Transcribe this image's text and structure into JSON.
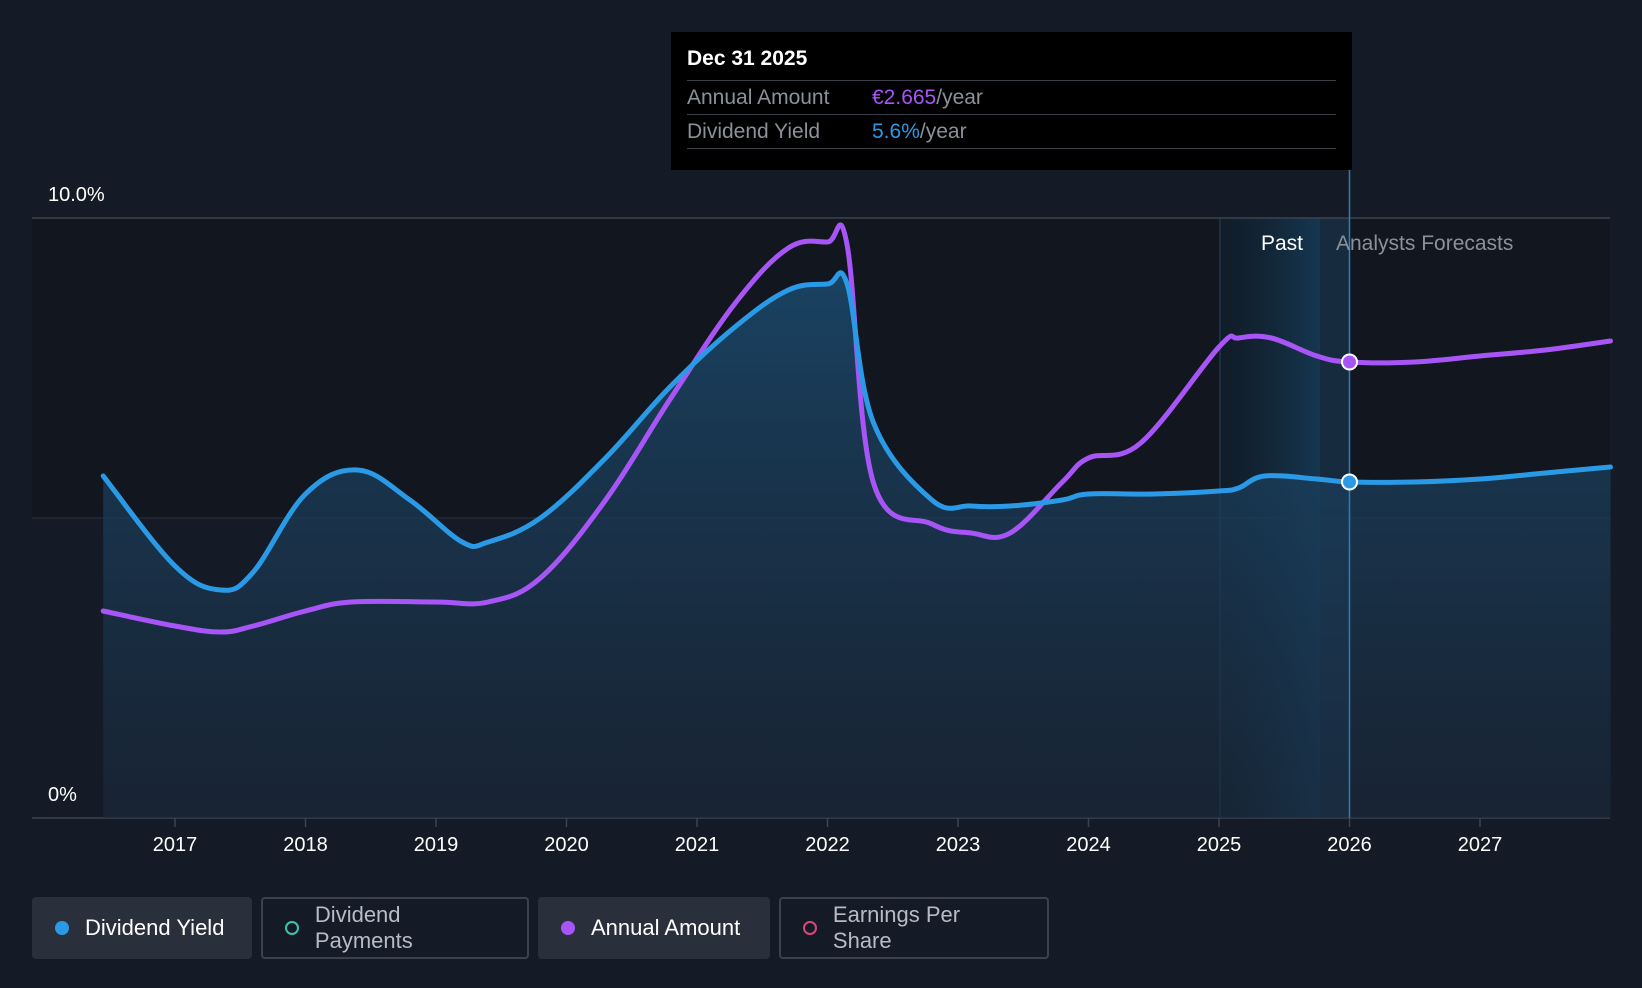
{
  "chart_data": {
    "type": "area",
    "title": "",
    "x_ticks": [
      "2017",
      "2018",
      "2019",
      "2020",
      "2021",
      "2022",
      "2023",
      "2024",
      "2025",
      "2026",
      "2027"
    ],
    "y_ticks": [
      "10.0%",
      "0%"
    ],
    "ylim": [
      0,
      10
    ],
    "regions": {
      "past": "Past",
      "forecast": "Analysts Forecasts"
    },
    "series": [
      {
        "name": "Dividend Yield",
        "color": "#2b9ae6",
        "x": [
          2016.45,
          2017.0,
          2017.35,
          2017.6,
          2018.0,
          2018.4,
          2018.8,
          2019.2,
          2019.4,
          2019.8,
          2020.3,
          2020.8,
          2021.3,
          2021.7,
          2022.0,
          2022.15,
          2022.35,
          2022.8,
          2023.1,
          2023.4,
          2023.8,
          2024.0,
          2024.5,
          2025.0,
          2025.15,
          2025.35,
          2025.75,
          2026.0,
          2026.5,
          2027.0,
          2027.5,
          2028.0
        ],
        "values": [
          5.7,
          4.2,
          3.8,
          4.1,
          5.4,
          5.8,
          5.3,
          4.6,
          4.6,
          5.0,
          6.0,
          7.2,
          8.2,
          8.8,
          8.9,
          8.9,
          6.6,
          5.3,
          5.2,
          5.2,
          5.3,
          5.4,
          5.4,
          5.45,
          5.5,
          5.7,
          5.65,
          5.6,
          5.6,
          5.65,
          5.75,
          5.85
        ]
      },
      {
        "name": "Annual Amount",
        "color": "#a855f7",
        "x": [
          2016.45,
          2017.0,
          2017.35,
          2017.6,
          2018.0,
          2018.35,
          2019.0,
          2019.4,
          2019.8,
          2020.3,
          2020.8,
          2021.3,
          2021.7,
          2022.0,
          2022.15,
          2022.35,
          2022.8,
          2023.1,
          2023.4,
          2023.8,
          2024.0,
          2024.4,
          2025.0,
          2025.15,
          2025.4,
          2025.75,
          2026.0,
          2026.5,
          2027.0,
          2027.5,
          2028.0
        ],
        "values": [
          3.45,
          3.2,
          3.1,
          3.2,
          3.45,
          3.6,
          3.6,
          3.6,
          4.0,
          5.3,
          7.0,
          8.6,
          9.5,
          9.6,
          9.55,
          5.6,
          4.9,
          4.75,
          4.75,
          5.6,
          6.0,
          6.25,
          7.85,
          8.0,
          8.0,
          7.7,
          7.6,
          7.6,
          7.7,
          7.8,
          7.95
        ]
      }
    ],
    "highlight_x": 2026.0,
    "tooltip": {
      "date": "Dec 31 2025",
      "rows": [
        {
          "label": "Annual Amount",
          "value": "€2.665",
          "unit": "/year"
        },
        {
          "label": "Dividend Yield",
          "value": "5.6%",
          "unit": "/year"
        }
      ]
    },
    "legend": [
      {
        "label": "Dividend Yield",
        "active": true,
        "color": "#2b9ae6"
      },
      {
        "label": "Dividend Payments",
        "active": false,
        "color": "#3fc1b0"
      },
      {
        "label": "Annual Amount",
        "active": true,
        "color": "#a855f7"
      },
      {
        "label": "Earnings Per Share",
        "active": false,
        "color": "#d9487c"
      }
    ]
  }
}
